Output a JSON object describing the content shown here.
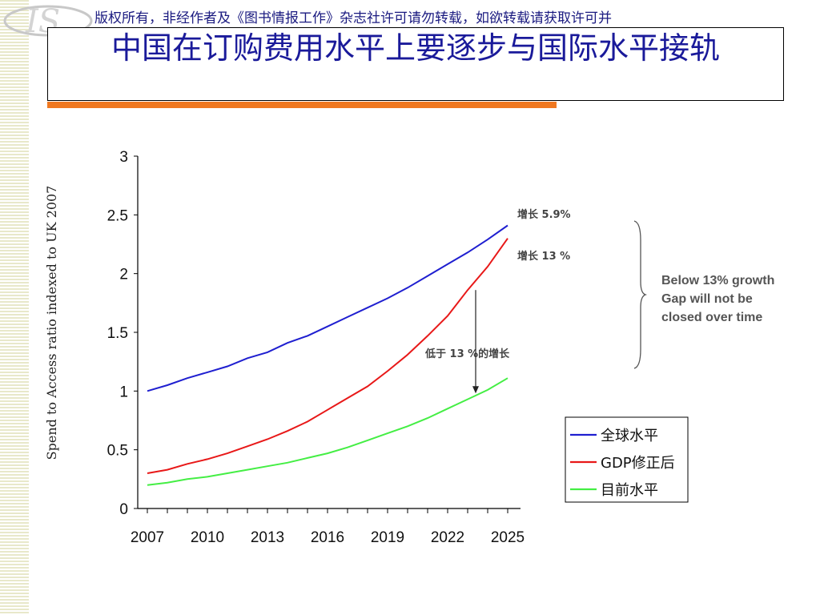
{
  "header": {
    "copyright": "版权所有，非经作者及《图书情报工作》杂志社许可请勿转载，如欲转载请获取许可并",
    "title": "中国在订购费用水平上要逐步与国际水平接轨",
    "logo_text": "IS"
  },
  "chart_data": {
    "type": "line",
    "title": "",
    "xlabel": "",
    "ylabel": "Spend to Access ratio indexed to UK 2007",
    "xlim": [
      2007,
      2025
    ],
    "ylim": [
      0,
      3
    ],
    "xticks": [
      "2007",
      "2010",
      "2013",
      "2016",
      "2019",
      "2022",
      "2025"
    ],
    "yticks": [
      "0",
      "0.5",
      "1",
      "1.5",
      "2",
      "2.5",
      "3"
    ],
    "legend_position": "bottom-right",
    "series": [
      {
        "name": "全球水平",
        "color": "#1f1fd0",
        "x": [
          2007,
          2008,
          2009,
          2010,
          2011,
          2012,
          2013,
          2014,
          2015,
          2016,
          2017,
          2018,
          2019,
          2020,
          2021,
          2022,
          2023,
          2024,
          2025
        ],
        "values": [
          1.0,
          1.05,
          1.11,
          1.16,
          1.21,
          1.28,
          1.33,
          1.41,
          1.47,
          1.55,
          1.63,
          1.71,
          1.79,
          1.88,
          1.98,
          2.08,
          2.18,
          2.29,
          2.41
        ]
      },
      {
        "name": "GDP修正后",
        "color": "#e81818",
        "x": [
          2007,
          2008,
          2009,
          2010,
          2011,
          2012,
          2013,
          2014,
          2015,
          2016,
          2017,
          2018,
          2019,
          2020,
          2021,
          2022,
          2023,
          2024,
          2025
        ],
        "values": [
          0.3,
          0.33,
          0.38,
          0.42,
          0.47,
          0.53,
          0.59,
          0.66,
          0.74,
          0.84,
          0.94,
          1.04,
          1.17,
          1.31,
          1.47,
          1.64,
          1.86,
          2.06,
          2.3
        ]
      },
      {
        "name": "目前水平",
        "color": "#44ee44",
        "x": [
          2007,
          2008,
          2009,
          2010,
          2011,
          2012,
          2013,
          2014,
          2015,
          2016,
          2017,
          2018,
          2019,
          2020,
          2021,
          2022,
          2023,
          2024,
          2025
        ],
        "values": [
          0.2,
          0.22,
          0.25,
          0.27,
          0.3,
          0.33,
          0.36,
          0.39,
          0.43,
          0.47,
          0.52,
          0.58,
          0.64,
          0.7,
          0.77,
          0.85,
          0.93,
          1.01,
          1.11
        ]
      }
    ],
    "annotations": {
      "growth_blue": "增长 5.9%",
      "growth_red": "增长 13 %",
      "below_growth": "低于 13 %的增长",
      "gap_line1": "Below 13% growth",
      "gap_line2": "Gap will not be",
      "gap_line3": "closed over time"
    },
    "arrow": {
      "x": 2023.4,
      "from": 1.86,
      "to": 0.98
    }
  }
}
